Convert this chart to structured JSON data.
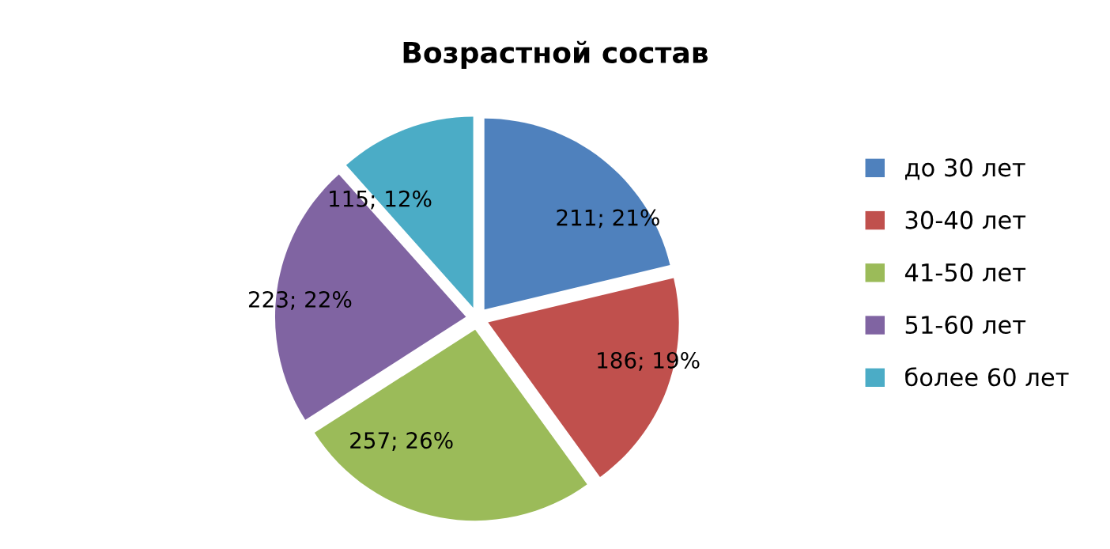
{
  "chart_data": {
    "type": "pie",
    "title": "Возрастной состав",
    "categories": [
      "до 30 лет",
      "30-40 лет",
      "41-50 лет",
      "51-60 лет",
      "более 60 лет"
    ],
    "values": [
      211,
      186,
      257,
      223,
      115
    ],
    "colors": [
      "#4f81bd",
      "#c0504d",
      "#9bbb59",
      "#8064a2",
      "#4bacc6"
    ],
    "value_labels": [
      "211; 21%",
      "186; 19%",
      "257; 26%",
      "223; 22%",
      "115; 12%"
    ],
    "legend": "right"
  }
}
